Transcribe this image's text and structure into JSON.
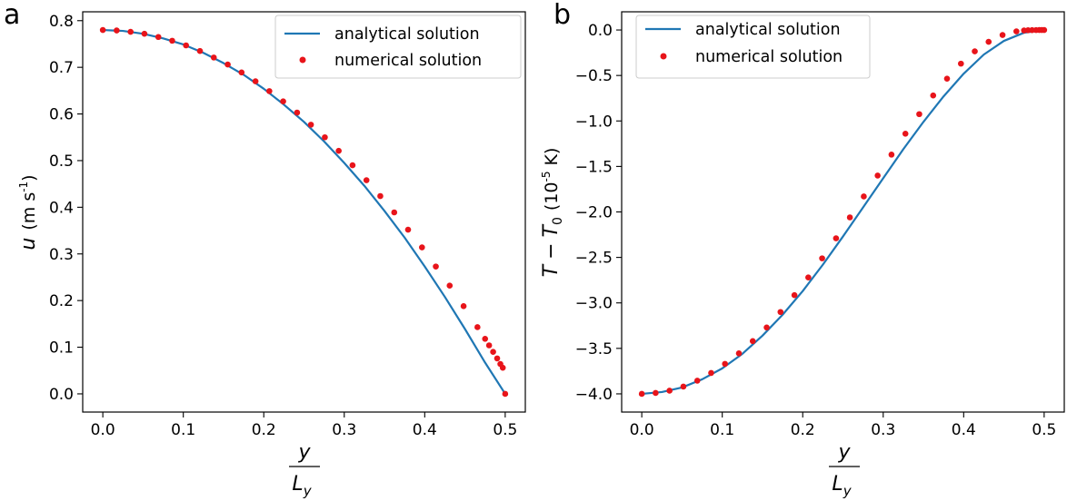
{
  "chart_data": [
    {
      "panel": "a",
      "type": "line",
      "xlabel": {
        "num": "y",
        "den": "L",
        "den_sub": "y"
      },
      "ylabel": {
        "var": "u",
        "unit_pre": "(m s",
        "unit_sup": "-1",
        "unit_post": ")"
      },
      "xlim": [
        -0.025,
        0.525
      ],
      "ylim": [
        -0.039,
        0.819
      ],
      "xticks": [
        0.0,
        0.1,
        0.2,
        0.3,
        0.4,
        0.5
      ],
      "xtick_labels": [
        "0.0",
        "0.1",
        "0.2",
        "0.3",
        "0.4",
        "0.5"
      ],
      "yticks": [
        0.0,
        0.1,
        0.2,
        0.3,
        0.4,
        0.5,
        0.6,
        0.7,
        0.8
      ],
      "ytick_labels": [
        "0.0",
        "0.1",
        "0.2",
        "0.3",
        "0.4",
        "0.5",
        "0.6",
        "0.7",
        "0.8"
      ],
      "grid": false,
      "legend_position": "top-right",
      "series": [
        {
          "name": "analytical solution",
          "kind": "line",
          "color": "#1f77b4",
          "x": [
            0.0,
            0.025,
            0.05,
            0.075,
            0.1,
            0.125,
            0.15,
            0.175,
            0.2,
            0.225,
            0.25,
            0.275,
            0.3,
            0.325,
            0.35,
            0.375,
            0.4,
            0.425,
            0.45,
            0.475,
            0.5
          ],
          "y": [
            0.78,
            0.778,
            0.772,
            0.762,
            0.749,
            0.731,
            0.709,
            0.684,
            0.654,
            0.62,
            0.583,
            0.541,
            0.495,
            0.446,
            0.392,
            0.335,
            0.273,
            0.208,
            0.139,
            0.067,
            0.0
          ]
        },
        {
          "name": "numerical solution",
          "kind": "scatter",
          "color": "#e8141a",
          "x": [
            0.0,
            0.0172,
            0.0345,
            0.0517,
            0.069,
            0.0862,
            0.1034,
            0.1207,
            0.1379,
            0.1552,
            0.1724,
            0.1897,
            0.2069,
            0.2241,
            0.2414,
            0.2586,
            0.2759,
            0.2931,
            0.3103,
            0.3276,
            0.3448,
            0.3621,
            0.3793,
            0.3966,
            0.4138,
            0.431,
            0.4483,
            0.4655,
            0.475,
            0.48,
            0.485,
            0.49,
            0.494,
            0.497,
            0.5
          ],
          "y": [
            0.78,
            0.779,
            0.776,
            0.772,
            0.765,
            0.757,
            0.747,
            0.735,
            0.721,
            0.706,
            0.689,
            0.67,
            0.649,
            0.627,
            0.603,
            0.577,
            0.55,
            0.521,
            0.49,
            0.458,
            0.424,
            0.389,
            0.352,
            0.314,
            0.273,
            0.232,
            0.188,
            0.143,
            0.118,
            0.104,
            0.09,
            0.076,
            0.064,
            0.056,
            0.0
          ]
        }
      ]
    },
    {
      "panel": "b",
      "type": "line",
      "xlabel": {
        "num": "y",
        "den": "L",
        "den_sub": "y"
      },
      "ylabel": {
        "var": "T",
        "minus": "−",
        "var2": "T",
        "var2_sub": "0",
        "unit_pre": "(10",
        "unit_sup": "-5",
        "unit_post": " K)"
      },
      "xlim": [
        -0.025,
        0.525
      ],
      "ylim": [
        -4.2,
        0.2
      ],
      "xticks": [
        0.0,
        0.1,
        0.2,
        0.3,
        0.4,
        0.5
      ],
      "xtick_labels": [
        "0.0",
        "0.1",
        "0.2",
        "0.3",
        "0.4",
        "0.5"
      ],
      "yticks": [
        0.0,
        -0.5,
        -1.0,
        -1.5,
        -2.0,
        -2.5,
        -3.0,
        -3.5,
        -4.0
      ],
      "ytick_labels": [
        "0.0",
        "−0.5",
        "−1.0",
        "−1.5",
        "−2.0",
        "−2.5",
        "−3.0",
        "−3.5",
        "−4.0"
      ],
      "grid": false,
      "legend_position": "top-left",
      "series": [
        {
          "name": "analytical solution",
          "kind": "line",
          "color": "#1f77b4",
          "x": [
            0.0,
            0.025,
            0.05,
            0.075,
            0.1,
            0.125,
            0.15,
            0.175,
            0.2,
            0.225,
            0.25,
            0.275,
            0.3,
            0.325,
            0.35,
            0.375,
            0.4,
            0.425,
            0.45,
            0.475,
            0.5
          ],
          "y": [
            -4.0,
            -3.98,
            -3.93,
            -3.84,
            -3.72,
            -3.56,
            -3.36,
            -3.13,
            -2.87,
            -2.58,
            -2.27,
            -1.95,
            -1.63,
            -1.31,
            -1.01,
            -0.73,
            -0.48,
            -0.27,
            -0.12,
            -0.03,
            0.0
          ]
        },
        {
          "name": "numerical solution",
          "kind": "scatter",
          "color": "#e8141a",
          "x": [
            0.0,
            0.0172,
            0.0345,
            0.0517,
            0.069,
            0.0862,
            0.1034,
            0.1207,
            0.1379,
            0.1552,
            0.1724,
            0.1897,
            0.2069,
            0.2241,
            0.2414,
            0.2586,
            0.2759,
            0.2931,
            0.3103,
            0.3276,
            0.3448,
            0.3621,
            0.3793,
            0.3966,
            0.4138,
            0.431,
            0.4483,
            0.4655,
            0.475,
            0.48,
            0.485,
            0.49,
            0.494,
            0.497,
            0.5
          ],
          "y": [
            -4.0,
            -3.99,
            -3.965,
            -3.92,
            -3.855,
            -3.77,
            -3.67,
            -3.555,
            -3.42,
            -3.27,
            -3.1,
            -2.915,
            -2.72,
            -2.51,
            -2.29,
            -2.06,
            -1.83,
            -1.6,
            -1.37,
            -1.14,
            -0.925,
            -0.72,
            -0.535,
            -0.37,
            -0.235,
            -0.13,
            -0.055,
            -0.015,
            -0.005,
            -0.003,
            -0.0015,
            -0.0007,
            -0.0003,
            -0.0001,
            0.0
          ]
        }
      ]
    }
  ]
}
